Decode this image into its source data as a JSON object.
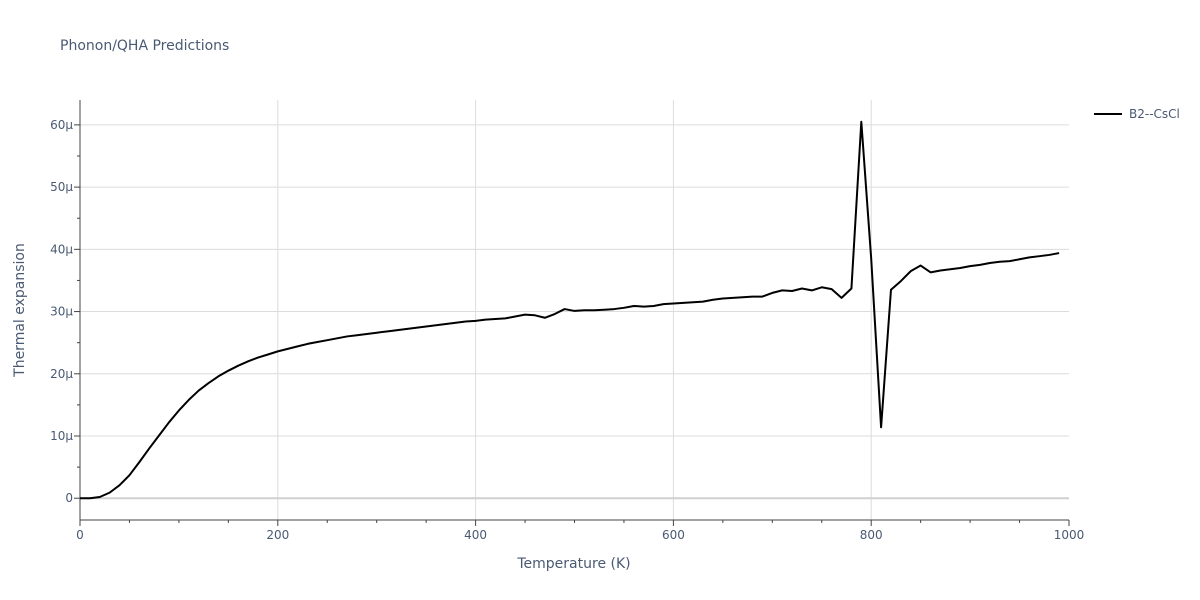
{
  "chart_data": {
    "type": "line",
    "title": "Phonon/QHA Predictions",
    "xlabel": "Temperature (K)",
    "ylabel": "Thermal expansion",
    "xlim": [
      0,
      1000
    ],
    "ylim": [
      -3.5e-06,
      6.4e-05
    ],
    "x_ticks": [
      0,
      200,
      400,
      600,
      800,
      1000
    ],
    "x_tick_labels": [
      "0",
      "200",
      "400",
      "600",
      "800",
      "1000"
    ],
    "y_ticks": [
      0,
      1e-05,
      2e-05,
      3e-05,
      4e-05,
      5e-05,
      6e-05
    ],
    "y_tick_labels": [
      "0",
      "10μ",
      "20μ",
      "30μ",
      "40μ",
      "50μ",
      "60μ"
    ],
    "grid": true,
    "legend_position": "top-right",
    "series": [
      {
        "name": "B2--CsCl",
        "color": "#000000",
        "x": [
          0,
          10,
          20,
          30,
          40,
          50,
          60,
          70,
          80,
          90,
          100,
          110,
          120,
          130,
          140,
          150,
          160,
          170,
          180,
          190,
          200,
          210,
          220,
          230,
          240,
          250,
          260,
          270,
          280,
          290,
          300,
          310,
          320,
          330,
          340,
          350,
          360,
          370,
          380,
          390,
          400,
          410,
          420,
          430,
          440,
          450,
          460,
          470,
          480,
          490,
          500,
          510,
          520,
          530,
          540,
          550,
          560,
          570,
          580,
          590,
          600,
          610,
          620,
          630,
          640,
          650,
          660,
          670,
          680,
          690,
          700,
          710,
          720,
          730,
          740,
          750,
          760,
          770,
          780,
          790,
          800,
          810,
          820,
          830,
          840,
          850,
          860,
          870,
          880,
          890,
          900,
          910,
          920,
          930,
          940,
          950,
          960,
          970,
          980,
          990
        ],
        "y": [
          0,
          0,
          2e-07,
          9e-07,
          2.1e-06,
          3.7e-06,
          5.8e-06,
          8e-06,
          1.01e-05,
          1.22e-05,
          1.41e-05,
          1.58e-05,
          1.73e-05,
          1.85e-05,
          1.96e-05,
          2.05e-05,
          2.13e-05,
          2.2e-05,
          2.26e-05,
          2.31e-05,
          2.36e-05,
          2.4e-05,
          2.44e-05,
          2.48e-05,
          2.51e-05,
          2.54e-05,
          2.57e-05,
          2.6e-05,
          2.62e-05,
          2.64e-05,
          2.66e-05,
          2.68e-05,
          2.7e-05,
          2.72e-05,
          2.74e-05,
          2.76e-05,
          2.78e-05,
          2.8e-05,
          2.82e-05,
          2.84e-05,
          2.85e-05,
          2.87e-05,
          2.88e-05,
          2.89e-05,
          2.92e-05,
          2.95e-05,
          2.94e-05,
          2.9e-05,
          2.96e-05,
          3.04e-05,
          3.01e-05,
          3.02e-05,
          3.02e-05,
          3.03e-05,
          3.04e-05,
          3.06e-05,
          3.09e-05,
          3.08e-05,
          3.09e-05,
          3.12e-05,
          3.13e-05,
          3.14e-05,
          3.15e-05,
          3.16e-05,
          3.19e-05,
          3.21e-05,
          3.22e-05,
          3.23e-05,
          3.24e-05,
          3.24e-05,
          3.3e-05,
          3.34e-05,
          3.33e-05,
          3.37e-05,
          3.34e-05,
          3.39e-05,
          3.36e-05,
          3.22e-05,
          3.37e-05,
          6.05e-05,
          3.85e-05,
          1.14e-05,
          3.35e-05,
          3.49e-05,
          3.65e-05,
          3.74e-05,
          3.63e-05,
          3.66e-05,
          3.68e-05,
          3.7e-05,
          3.73e-05,
          3.75e-05,
          3.78e-05,
          3.8e-05,
          3.81e-05,
          3.84e-05,
          3.87e-05,
          3.89e-05,
          3.91e-05,
          3.94e-05
        ]
      }
    ]
  }
}
